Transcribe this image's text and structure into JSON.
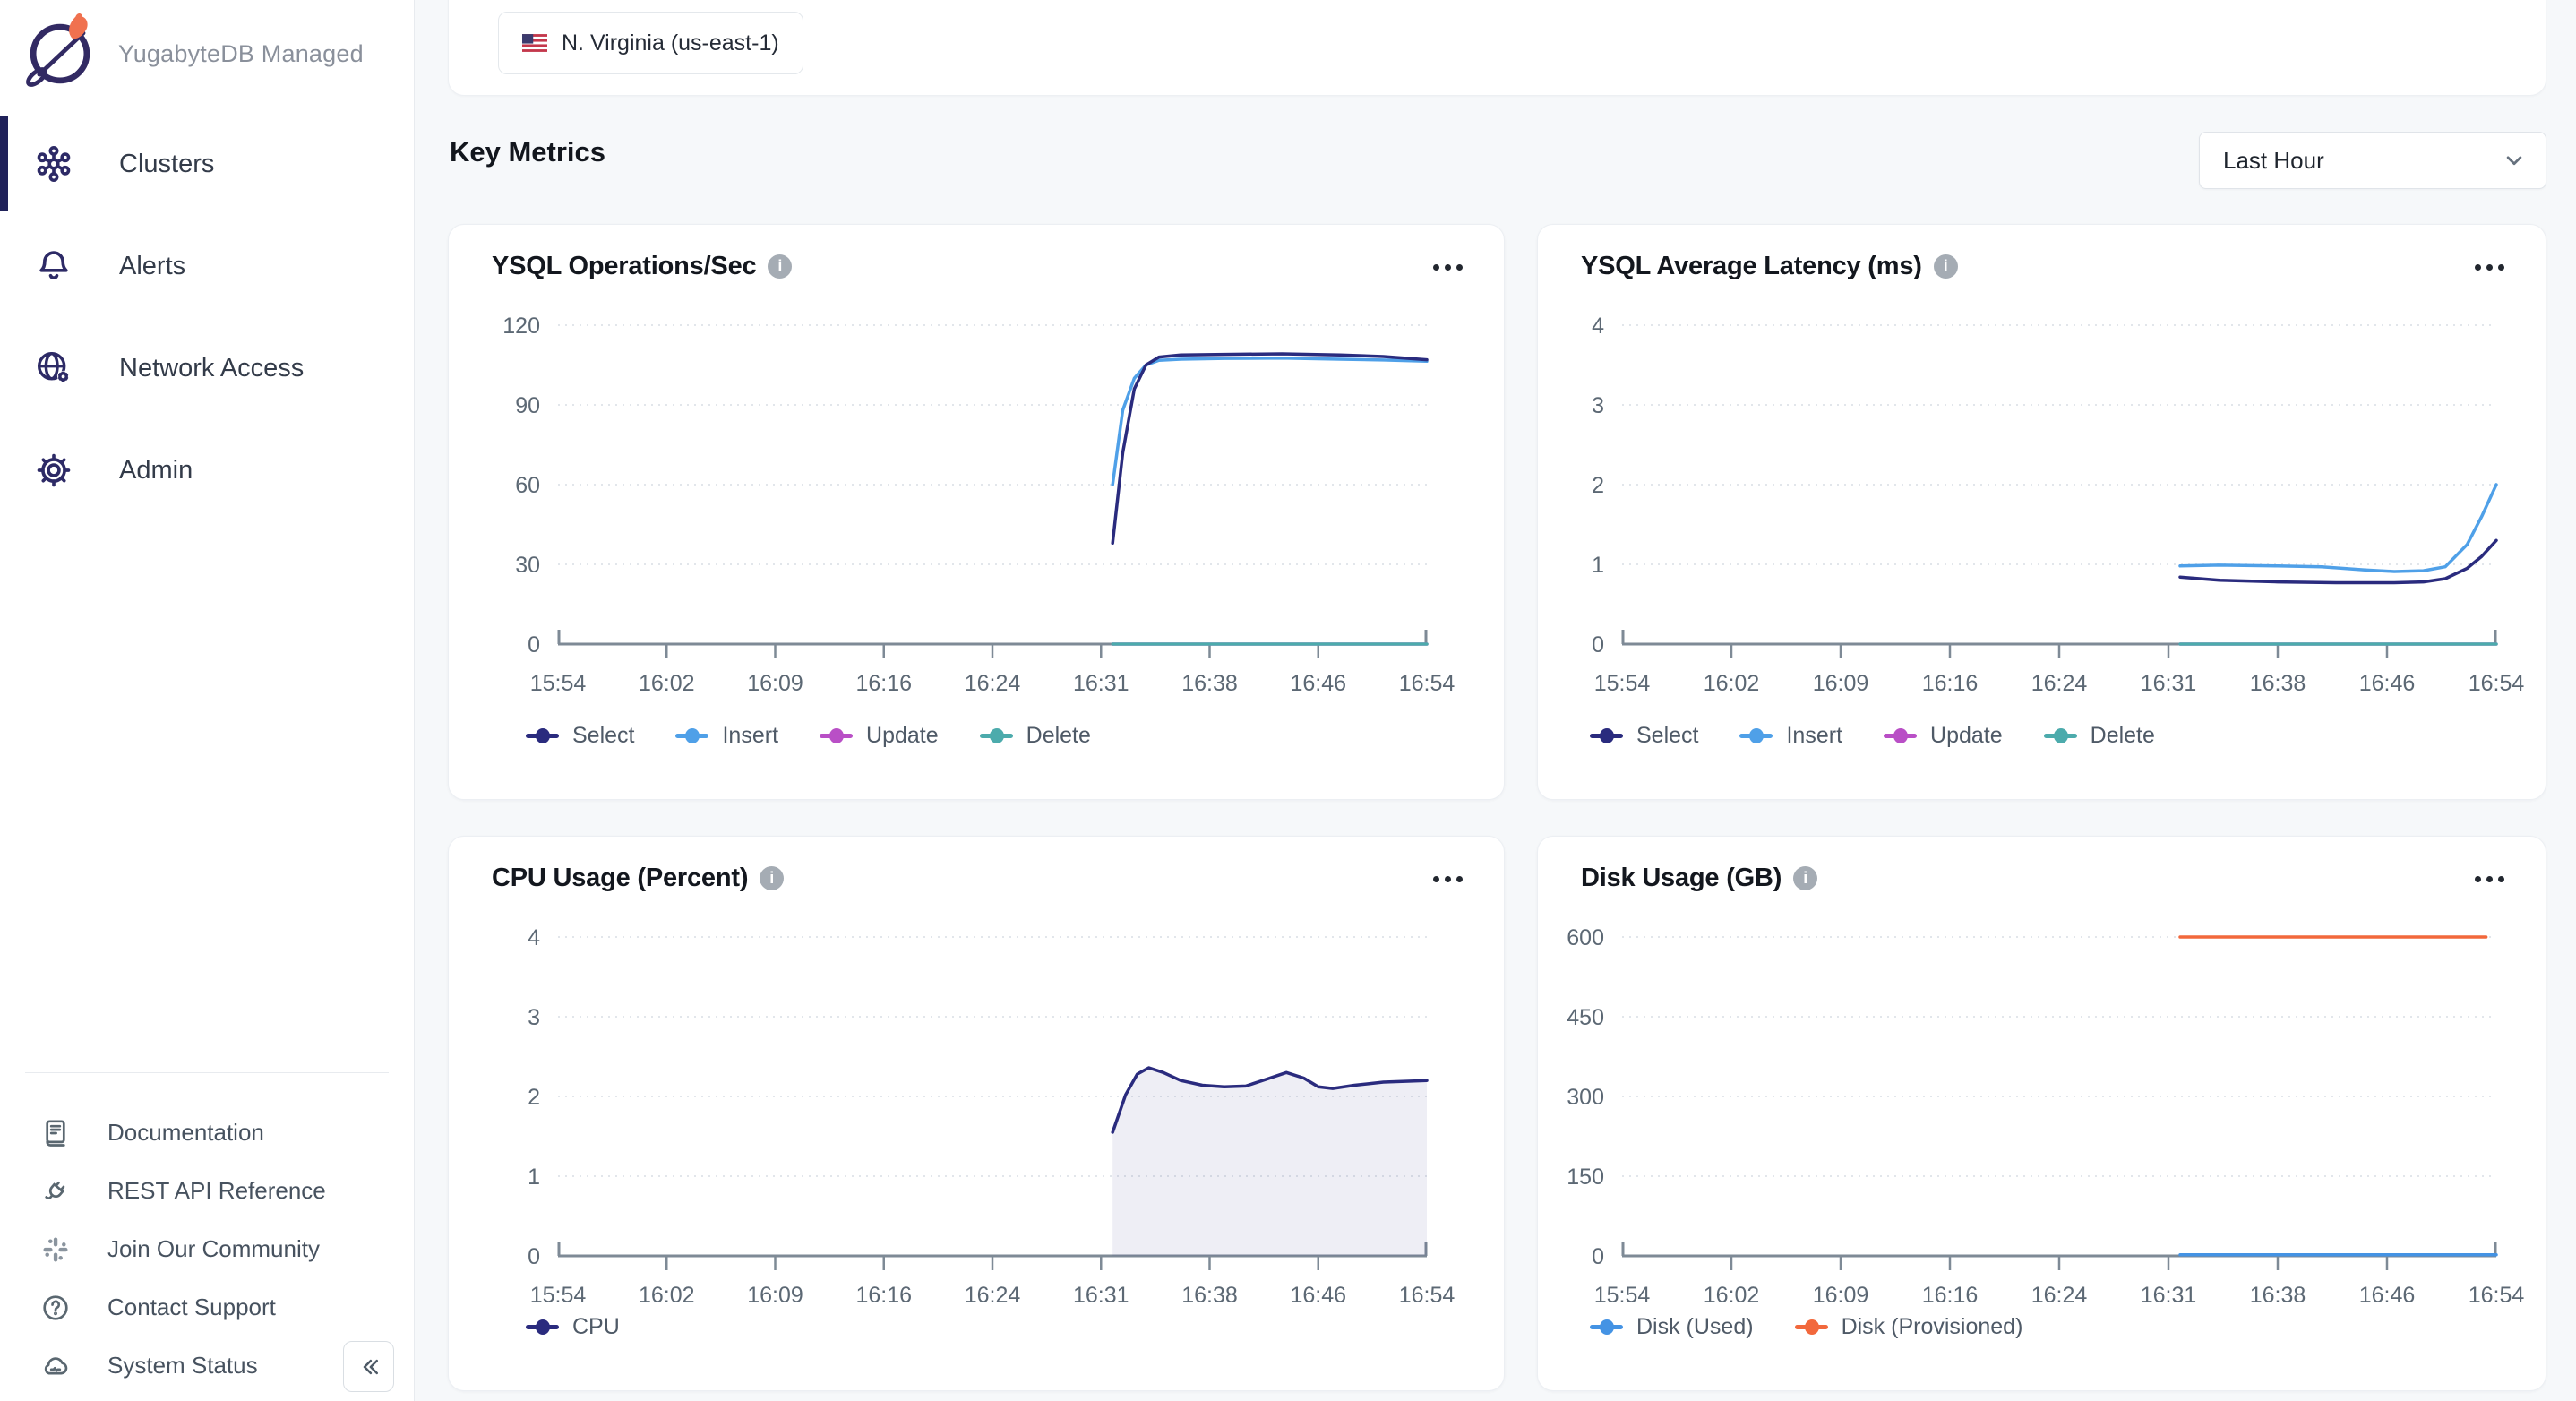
{
  "brand": {
    "name": "YugabyteDB Managed"
  },
  "sidebar": {
    "nav": [
      {
        "label": "Clusters",
        "active": true
      },
      {
        "label": "Alerts",
        "active": false
      },
      {
        "label": "Network Access",
        "active": false
      },
      {
        "label": "Admin",
        "active": false
      }
    ],
    "footer_links": [
      {
        "label": "Documentation"
      },
      {
        "label": "REST API Reference"
      },
      {
        "label": "Join Our Community"
      },
      {
        "label": "Contact Support"
      },
      {
        "label": "System Status"
      }
    ]
  },
  "header": {
    "region_label": "N. Virginia (us-east-1)"
  },
  "content": {
    "heading": "Key Metrics",
    "time_range_value": "Last Hour"
  },
  "colors": {
    "select_navy": "#2A2B7E",
    "insert_blue": "#4FA0E8",
    "update_magenta": "#B94FC6",
    "delete_teal": "#4CABAC",
    "disk_used_blue": "#4493E4",
    "disk_provisioned_orange": "#F2683C",
    "axis": "#7E8A96",
    "gridline": "#E2E6EB",
    "accent_active": "#20225A"
  },
  "chart_data": [
    {
      "id": "ysql-ops",
      "type": "line",
      "title": "YSQL Operations/Sec",
      "y_ticks": [
        120,
        90,
        60,
        30,
        0
      ],
      "ylim": [
        0,
        120
      ],
      "grid": "dotted-horizontal",
      "x_labels": [
        "15:54",
        "16:02",
        "16:09",
        "16:16",
        "16:24",
        "16:31",
        "16:38",
        "16:46",
        "16:54"
      ],
      "legend_position": "bottom",
      "legend": [
        {
          "label": "Select",
          "color": "#2A2B7E"
        },
        {
          "label": "Insert",
          "color": "#4FA0E8"
        },
        {
          "label": "Update",
          "color": "#B94FC6"
        },
        {
          "label": "Delete",
          "color": "#4CABAC"
        }
      ],
      "series": [
        {
          "name": "Update",
          "color": "#B94FC6",
          "points": [
            [
              38.3,
              0
            ],
            [
              60,
              0
            ]
          ]
        },
        {
          "name": "Delete",
          "color": "#4CABAC",
          "points": [
            [
              38.3,
              0
            ],
            [
              60,
              0
            ]
          ]
        },
        {
          "name": "Insert",
          "color": "#4FA0E8",
          "points": [
            [
              38.3,
              60
            ],
            [
              39,
              88
            ],
            [
              39.8,
              100
            ],
            [
              40.6,
              105
            ],
            [
              41.5,
              106.8
            ],
            [
              43,
              107.2
            ],
            [
              46,
              107.5
            ],
            [
              50,
              107.6
            ],
            [
              54,
              107.2
            ],
            [
              57,
              106.9
            ],
            [
              60,
              106.4
            ]
          ]
        },
        {
          "name": "Select",
          "color": "#2A2B7E",
          "points": [
            [
              38.3,
              38
            ],
            [
              39,
              72
            ],
            [
              39.8,
              96
            ],
            [
              40.6,
              105
            ],
            [
              41.5,
              108
            ],
            [
              43,
              108.8
            ],
            [
              46,
              109
            ],
            [
              50,
              109.2
            ],
            [
              54,
              108.8
            ],
            [
              57,
              108.2
            ],
            [
              60,
              107
            ]
          ]
        }
      ]
    },
    {
      "id": "ysql-latency",
      "type": "line",
      "title": "YSQL Average Latency (ms)",
      "y_ticks": [
        4,
        3,
        2,
        1,
        0
      ],
      "ylim": [
        0,
        4
      ],
      "grid": "dotted-horizontal",
      "x_labels": [
        "15:54",
        "16:02",
        "16:09",
        "16:16",
        "16:24",
        "16:31",
        "16:38",
        "16:46",
        "16:54"
      ],
      "legend_position": "bottom",
      "legend": [
        {
          "label": "Select",
          "color": "#2A2B7E"
        },
        {
          "label": "Insert",
          "color": "#4FA0E8"
        },
        {
          "label": "Update",
          "color": "#B94FC6"
        },
        {
          "label": "Delete",
          "color": "#4CABAC"
        }
      ],
      "series": [
        {
          "name": "Update",
          "color": "#B94FC6",
          "points": [
            [
              38.3,
              0
            ],
            [
              60,
              0
            ]
          ]
        },
        {
          "name": "Delete",
          "color": "#4CABAC",
          "points": [
            [
              38.3,
              0
            ],
            [
              60,
              0
            ]
          ]
        },
        {
          "name": "Insert",
          "color": "#4FA0E8",
          "points": [
            [
              38.3,
              0.98
            ],
            [
              41,
              0.99
            ],
            [
              45,
              0.98
            ],
            [
              48,
              0.97
            ],
            [
              51,
              0.93
            ],
            [
              53,
              0.91
            ],
            [
              55,
              0.92
            ],
            [
              56.5,
              0.97
            ],
            [
              58,
              1.25
            ],
            [
              59,
              1.6
            ],
            [
              60,
              2.0
            ]
          ]
        },
        {
          "name": "Select",
          "color": "#2A2B7E",
          "points": [
            [
              38.3,
              0.84
            ],
            [
              41,
              0.8
            ],
            [
              45,
              0.78
            ],
            [
              49,
              0.77
            ],
            [
              53,
              0.77
            ],
            [
              55,
              0.78
            ],
            [
              56.5,
              0.82
            ],
            [
              58,
              0.95
            ],
            [
              59,
              1.1
            ],
            [
              60,
              1.3
            ]
          ]
        }
      ]
    },
    {
      "id": "cpu-usage",
      "type": "area",
      "title": "CPU Usage (Percent)",
      "y_ticks": [
        4,
        3,
        2,
        1,
        0
      ],
      "ylim": [
        0,
        4
      ],
      "grid": "dotted-horizontal",
      "x_labels": [
        "15:54",
        "16:02",
        "16:09",
        "16:16",
        "16:24",
        "16:31",
        "16:38",
        "16:46",
        "16:54"
      ],
      "legend_position": "bottom",
      "legend": [
        {
          "label": "CPU",
          "color": "#2A2B7E"
        }
      ],
      "series": [
        {
          "name": "CPU",
          "color": "#2A2B7E",
          "fill": "rgba(62,62,143,0.09)",
          "points": [
            [
              38.3,
              1.55
            ],
            [
              39.2,
              2.02
            ],
            [
              40,
              2.28
            ],
            [
              40.8,
              2.36
            ],
            [
              41.8,
              2.3
            ],
            [
              43,
              2.2
            ],
            [
              44.5,
              2.14
            ],
            [
              46,
              2.12
            ],
            [
              47.5,
              2.13
            ],
            [
              49,
              2.22
            ],
            [
              50.3,
              2.3
            ],
            [
              51.5,
              2.23
            ],
            [
              52.5,
              2.12
            ],
            [
              53.5,
              2.1
            ],
            [
              55,
              2.14
            ],
            [
              57,
              2.18
            ],
            [
              60,
              2.2
            ]
          ]
        }
      ]
    },
    {
      "id": "disk-usage",
      "type": "line",
      "title": "Disk Usage (GB)",
      "y_ticks": [
        600,
        450,
        300,
        150,
        0
      ],
      "ylim": [
        0,
        600
      ],
      "grid": "dotted-horizontal",
      "x_labels": [
        "15:54",
        "16:02",
        "16:09",
        "16:16",
        "16:24",
        "16:31",
        "16:38",
        "16:46",
        "16:54"
      ],
      "legend_position": "bottom",
      "legend": [
        {
          "label": "Disk (Used)",
          "color": "#4493E4"
        },
        {
          "label": "Disk (Provisioned)",
          "color": "#F2683C"
        }
      ],
      "series": [
        {
          "name": "Disk (Used)",
          "color": "#4493E4",
          "points": [
            [
              38.3,
              2
            ],
            [
              60,
              2
            ]
          ]
        },
        {
          "name": "Disk (Provisioned)",
          "color": "#F2683C",
          "points": [
            [
              38.3,
              600
            ],
            [
              59.3,
              600
            ]
          ]
        }
      ]
    }
  ]
}
